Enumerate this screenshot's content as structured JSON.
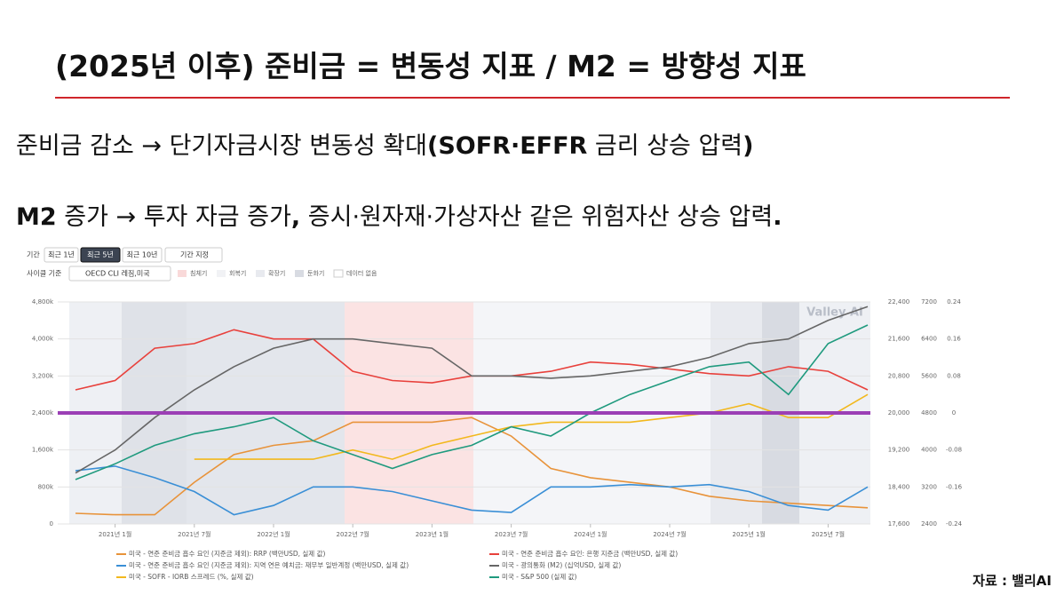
{
  "header": {
    "title": "(2025년 이후) 준비금 = 변동성 지표 / M2 = 방향성 지표"
  },
  "bullets": [
    [
      "준비금 감소 → 단기자금시장 변동성 확대",
      "(SOFR·EFFR",
      " 금리 상승 압력",
      ")"
    ],
    [
      "M2",
      " 증가 → 투자 자금 증가",
      ",",
      " 증시·원자재·가상자산 같은 위험자산 상승 압력",
      "."
    ]
  ],
  "controls": {
    "period_label": "기간",
    "period_buttons": [
      "최근 1년",
      "최근 5년",
      "최근 10년"
    ],
    "custom_period": "기간 지정",
    "cycle_label": "사이클 기준",
    "cycle_select": "OECD CLI 레짐,미국",
    "regimes": [
      "침체기",
      "회복기",
      "확장기",
      "둔화기",
      "데이터 없음"
    ]
  },
  "watermark": "Valley AI",
  "source": "자료 : 밸리AI",
  "chart_data": {
    "type": "line",
    "categories": [
      null,
      "2021년 1월",
      null,
      "2021년 7월",
      null,
      "2022년 1월",
      null,
      "2022년 7월",
      null,
      "2023년 1월",
      null,
      "2023년 7월",
      null,
      "2024년 1월",
      null,
      "2024년 7월",
      null,
      "2025년 1월",
      null,
      "2025년 7월",
      null
    ],
    "ylim": [
      0,
      4800000
    ],
    "yticks": [
      {
        "value": 0,
        "label": "0"
      },
      {
        "value": 800000,
        "label": "800k"
      },
      {
        "value": 1600000,
        "label": "1,600k"
      },
      {
        "value": 2400000,
        "label": "2,400k"
      },
      {
        "value": 3200000,
        "label": "3,200k"
      },
      {
        "value": 4000000,
        "label": "4,000k"
      },
      {
        "value": 4800000,
        "label": "4,800k"
      }
    ],
    "y2lim": [
      17600,
      22400
    ],
    "y2ticks": [
      {
        "value": 17600,
        "label": "17,600"
      },
      {
        "value": 18400,
        "label": "18,400"
      },
      {
        "value": 19200,
        "label": "19,200"
      },
      {
        "value": 20000,
        "label": "20,000"
      },
      {
        "value": 20800,
        "label": "20,800"
      },
      {
        "value": 21600,
        "label": "21,600"
      },
      {
        "value": 22400,
        "label": "22,400"
      }
    ],
    "y3lim": [
      2400,
      7200
    ],
    "y3ticks": [
      2400,
      3200,
      4000,
      4800,
      5600,
      6400,
      7200
    ],
    "y4lim": [
      -0.24,
      0.24
    ],
    "y4ticks": [
      -0.24,
      -0.16,
      -0.08,
      0,
      0.08,
      0.16,
      0.24
    ],
    "grid": true,
    "series": [
      {
        "name": "미국 - 연준 준비금 흡수 요인 (지준금 제외): RRP (백만USD, 실제 값)",
        "color": "#e8933a",
        "axis": "y",
        "values": [
          230000,
          200000,
          200000,
          900000,
          1500000,
          1700000,
          1800000,
          2200000,
          2200000,
          2200000,
          2300000,
          1900000,
          1200000,
          1000000,
          900000,
          800000,
          600000,
          500000,
          450000,
          400000,
          350000
        ]
      },
      {
        "name": "미국 - 연준 준비금 흡수 요인: 은행 지준금 (백만USD, 실제 값)",
        "color": "#e8413c",
        "axis": "y",
        "values": [
          2900000,
          3100000,
          3800000,
          3900000,
          4200000,
          4000000,
          4000000,
          3300000,
          3100000,
          3050000,
          3200000,
          3200000,
          3300000,
          3500000,
          3450000,
          3350000,
          3250000,
          3200000,
          3400000,
          3300000,
          2900000
        ]
      },
      {
        "name": "미국 - 연준 준비금 흡수 요인 (지준금 제외): 지역 연은 예치금: 재무부 일반계정 (백만USD, 실제 값)",
        "color": "#3a8fd6",
        "axis": "y",
        "values": [
          1150000,
          1250000,
          1000000,
          700000,
          200000,
          400000,
          800000,
          800000,
          700000,
          500000,
          300000,
          250000,
          800000,
          800000,
          850000,
          800000,
          850000,
          700000,
          400000,
          300000,
          800000
        ]
      },
      {
        "name": "미국 - 광의통화 (M2) (십억USD, 실제 값)",
        "color": "#666666",
        "axis": "y2",
        "values": [
          18700,
          19200,
          19900,
          20500,
          21000,
          21400,
          21600,
          21600,
          21500,
          21400,
          20800,
          20800,
          20750,
          20800,
          20900,
          21000,
          21200,
          21500,
          21600,
          22000,
          22300
        ]
      },
      {
        "name": "미국 - SOFR - IORB 스프레드 (%, 실제 값)",
        "color": "#f2b81d",
        "axis": "y4",
        "values": [
          null,
          null,
          null,
          -0.1,
          -0.1,
          -0.1,
          -0.1,
          -0.08,
          -0.1,
          -0.07,
          -0.05,
          -0.03,
          -0.02,
          -0.02,
          -0.02,
          -0.01,
          0,
          0.02,
          -0.01,
          -0.01,
          0.04
        ]
      },
      {
        "name": "미국 - S&P 500 (실제 값)",
        "color": "#1f9a7e",
        "axis": "y3",
        "values": [
          3360,
          3700,
          4100,
          4350,
          4500,
          4700,
          4200,
          3900,
          3600,
          3900,
          4100,
          4500,
          4300,
          4800,
          5200,
          5500,
          5800,
          5900,
          5200,
          6300,
          6700
        ]
      }
    ]
  }
}
